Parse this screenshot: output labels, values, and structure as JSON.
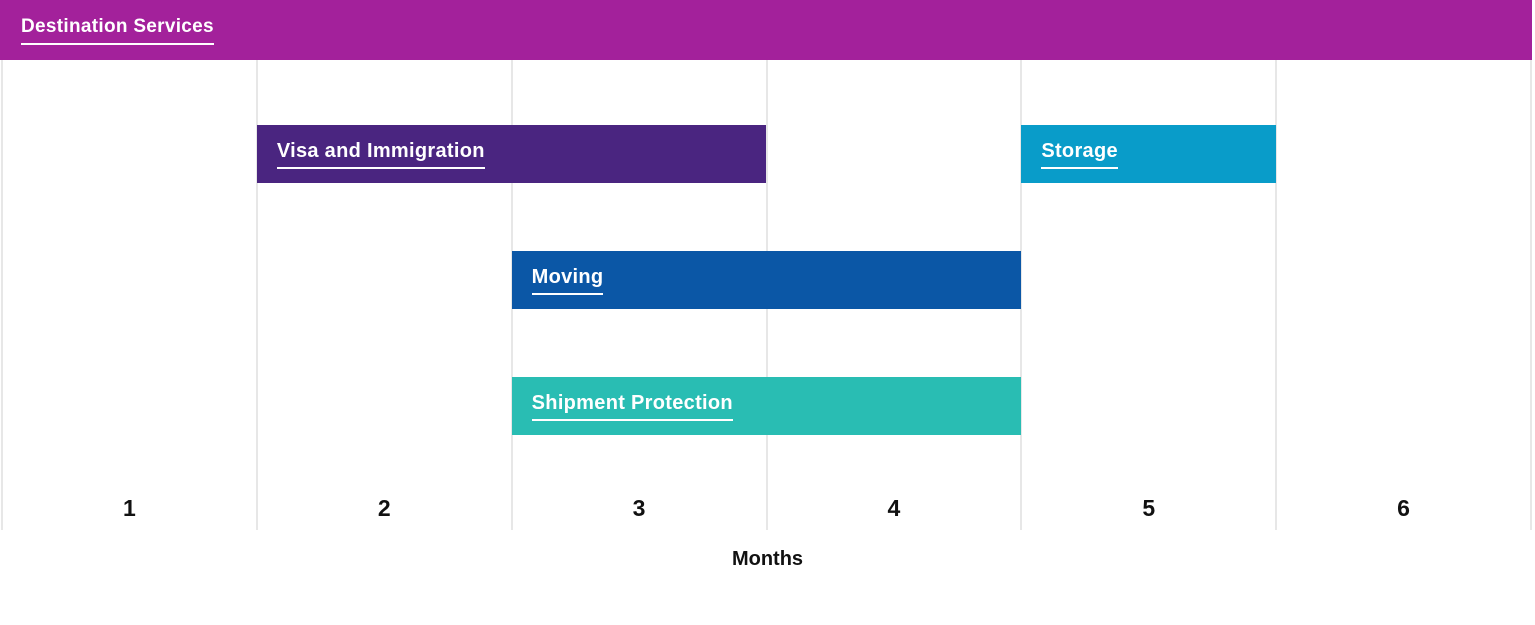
{
  "header": {
    "title": "Destination Services"
  },
  "colors": {
    "header_bg": "#A3219B",
    "gridline": "#E7E7E7",
    "axis_text": "#111111",
    "bar_text": "#FFFFFF"
  },
  "chart_data": {
    "type": "bar",
    "subtype": "gantt-timeline",
    "title": "Destination Services",
    "xlabel": "Months",
    "x_tick_labels": [
      "1",
      "2",
      "3",
      "4",
      "5",
      "6"
    ],
    "xlim": [
      1,
      7
    ],
    "grid": "vertical-only",
    "legend": "none",
    "tasks": [
      {
        "label": "Visa and Immigration",
        "start_month": 2,
        "end_month": 4,
        "months_covered": [
          2,
          3
        ],
        "row": 0,
        "color": "#4A2580"
      },
      {
        "label": "Storage",
        "start_month": 5,
        "end_month": 6,
        "months_covered": [
          5
        ],
        "row": 0,
        "color": "#099CC9"
      },
      {
        "label": "Moving",
        "start_month": 3,
        "end_month": 5,
        "months_covered": [
          3,
          4
        ],
        "row": 1,
        "color": "#0B57A6"
      },
      {
        "label": "Shipment Protection",
        "start_month": 3,
        "end_month": 5,
        "months_covered": [
          3,
          4
        ],
        "row": 2,
        "color": "#29BDB3"
      }
    ]
  }
}
